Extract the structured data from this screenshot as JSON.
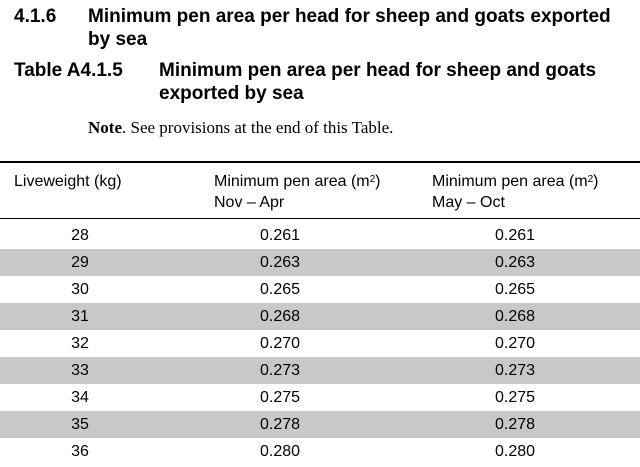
{
  "section": {
    "number": "4.1.6",
    "title": "Minimum pen area per head for sheep and goats exported by sea"
  },
  "table": {
    "number": "Table A4.1.5",
    "title": "Minimum pen area per head for sheep and goats exported by sea",
    "note_label": "Note",
    "note_text": ".   See provisions at the end of this Table.",
    "headers": {
      "col1": "Liveweight (kg)",
      "col2_line1": "Minimum pen area (m",
      "col2_sup": "2",
      "col2_line1_end": ")",
      "col2_line2": "Nov – Apr",
      "col3_line1": "Minimum pen area (m",
      "col3_sup": "2",
      "col3_line1_end": ")",
      "col3_line2": "May – Oct"
    },
    "rows": [
      [
        "28",
        "0.261",
        "0.261"
      ],
      [
        "29",
        "0.263",
        "0.263"
      ],
      [
        "30",
        "0.265",
        "0.265"
      ],
      [
        "31",
        "0.268",
        "0.268"
      ],
      [
        "32",
        "0.270",
        "0.270"
      ],
      [
        "33",
        "0.273",
        "0.273"
      ],
      [
        "34",
        "0.275",
        "0.275"
      ],
      [
        "35",
        "0.278",
        "0.278"
      ],
      [
        "36",
        "0.280",
        "0.280"
      ]
    ]
  }
}
